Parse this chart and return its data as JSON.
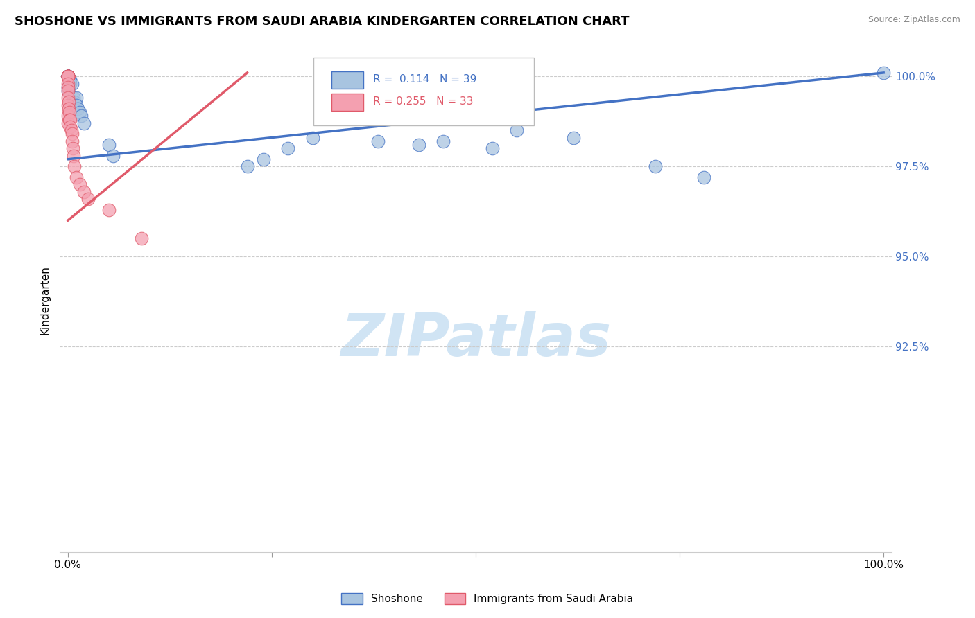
{
  "title": "SHOSHONE VS IMMIGRANTS FROM SAUDI ARABIA KINDERGARTEN CORRELATION CHART",
  "source": "Source: ZipAtlas.com",
  "ylabel": "Kindergarten",
  "ylim": [
    0.868,
    1.008
  ],
  "xlim": [
    -0.01,
    1.01
  ],
  "blue_R": 0.114,
  "blue_N": 39,
  "pink_R": 0.255,
  "pink_N": 33,
  "blue_color": "#a8c4e0",
  "pink_color": "#f4a0b0",
  "blue_line_color": "#4472c4",
  "pink_line_color": "#e05a6a",
  "legend_label_blue": "Shoshone",
  "legend_label_pink": "Immigrants from Saudi Arabia",
  "watermark": "ZIPatlas",
  "watermark_color": "#d0e4f4",
  "blue_trendline_x": [
    0.0,
    1.0
  ],
  "blue_trendline_y": [
    0.977,
    1.001
  ],
  "pink_trendline_x": [
    0.0,
    0.22
  ],
  "pink_trendline_y": [
    0.96,
    1.001
  ],
  "ytick_vals": [
    0.925,
    0.95,
    0.975,
    1.0
  ],
  "ytick_labels": [
    "92.5%",
    "95.0%",
    "97.5%",
    "100.0%"
  ],
  "blue_x": [
    0.0,
    0.0,
    0.0,
    0.0,
    0.0,
    0.0,
    0.0,
    0.0,
    0.0,
    0.0,
    0.0,
    0.0,
    0.0,
    0.003,
    0.003,
    0.005,
    0.007,
    0.008,
    0.01,
    0.01,
    0.012,
    0.015,
    0.016,
    0.02,
    0.05,
    0.055,
    0.22,
    0.24,
    0.27,
    0.3,
    0.38,
    0.43,
    0.46,
    0.52,
    0.55,
    0.62,
    0.72,
    0.78,
    1.0
  ],
  "blue_y": [
    1.0,
    1.0,
    1.0,
    1.0,
    1.0,
    1.0,
    1.0,
    1.0,
    1.0,
    1.0,
    1.0,
    0.997,
    0.996,
    0.999,
    0.998,
    0.998,
    0.994,
    0.993,
    0.994,
    0.992,
    0.991,
    0.99,
    0.989,
    0.987,
    0.981,
    0.978,
    0.975,
    0.977,
    0.98,
    0.983,
    0.982,
    0.981,
    0.982,
    0.98,
    0.985,
    0.983,
    0.975,
    0.972,
    1.001
  ],
  "pink_x": [
    0.0,
    0.0,
    0.0,
    0.0,
    0.0,
    0.0,
    0.0,
    0.0,
    0.0,
    0.0,
    0.0,
    0.0,
    0.0,
    0.0,
    0.0,
    0.001,
    0.001,
    0.002,
    0.002,
    0.003,
    0.003,
    0.004,
    0.005,
    0.005,
    0.006,
    0.007,
    0.008,
    0.01,
    0.015,
    0.02,
    0.025,
    0.05,
    0.09
  ],
  "pink_y": [
    1.0,
    1.0,
    1.0,
    1.0,
    1.0,
    1.0,
    1.0,
    1.0,
    0.998,
    0.997,
    0.996,
    0.994,
    0.992,
    0.989,
    0.987,
    0.993,
    0.991,
    0.99,
    0.988,
    0.988,
    0.986,
    0.985,
    0.984,
    0.982,
    0.98,
    0.978,
    0.975,
    0.972,
    0.97,
    0.968,
    0.966,
    0.963,
    0.955
  ]
}
